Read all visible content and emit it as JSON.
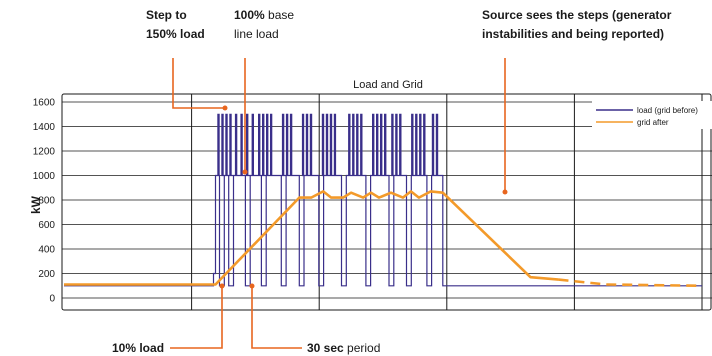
{
  "chart_data": {
    "type": "line",
    "title": "Load and Grid",
    "xlabel": "",
    "ylabel": "kW",
    "ylim": [
      0,
      1600
    ],
    "yticks": [
      0,
      200,
      400,
      600,
      800,
      1000,
      1200,
      1400,
      1600
    ],
    "xlim": [
      0,
      160
    ],
    "x_vertical_gridlines_at": [
      0,
      32,
      64,
      96,
      128,
      160
    ],
    "grid": true,
    "legend_position": "top-right",
    "colors": {
      "load": "#3a2f8a",
      "grid": "#f39a2a",
      "callout": "#e8661f"
    },
    "series": [
      {
        "name": "load (grid before)",
        "style": "solid",
        "baseline_kW": 100,
        "base_kW": 1000,
        "peak_kW": 1500,
        "step_up_at": 38,
        "return_to_baseline_at": 95,
        "pulse_width": 0.3,
        "peak_pulse_x": [
          38.6,
          39.6,
          40.6,
          41.6,
          43.0,
          44.4,
          45.8,
          47.2,
          48.8,
          49.8,
          50.8,
          51.8,
          54.8,
          55.8,
          56.8,
          59.8,
          60.8,
          61.8,
          64.8,
          65.8,
          66.8,
          67.8,
          71.4,
          72.4,
          73.4,
          74.4,
          77.4,
          78.4,
          79.4,
          80.4,
          82.2,
          83.2,
          84.2,
          87.2,
          88.2,
          89.2,
          90.2,
          92.4,
          93.4
        ],
        "dip_x": [
          39.0,
          41.3,
          45.5,
          49.5,
          54.5,
          59.0,
          63.9,
          69.6,
          75.7,
          81.5,
          85.9,
          91.0
        ],
        "dip_width": 1.2
      },
      {
        "name": "grid after",
        "style": "solid, dashed tail",
        "points": [
          [
            0,
            110
          ],
          [
            38,
            110
          ],
          [
            59,
            820
          ],
          [
            62,
            820
          ],
          [
            65,
            870
          ],
          [
            67,
            820
          ],
          [
            70,
            820
          ],
          [
            72,
            860
          ],
          [
            75,
            820
          ],
          [
            77,
            860
          ],
          [
            79,
            820
          ],
          [
            82,
            860
          ],
          [
            85,
            820
          ],
          [
            87,
            870
          ],
          [
            89,
            820
          ],
          [
            92,
            870
          ],
          [
            95,
            860
          ],
          [
            117,
            170
          ],
          [
            124,
            150
          ],
          [
            136,
            110
          ],
          [
            160,
            100
          ]
        ],
        "dashed_from_x": 124
      }
    ],
    "annotations": [
      {
        "parts": [
          {
            "text": "Step to",
            "bold": true
          }
        ],
        "line2": [
          {
            "text": "150% load",
            "bold": true
          }
        ]
      },
      {
        "parts": [
          {
            "text": "100%",
            "bold": true
          },
          {
            "text": " base",
            "bold": false
          }
        ],
        "line2": [
          {
            "text": "line load",
            "bold": false
          }
        ]
      },
      {
        "parts": [
          {
            "text": "Source sees the steps (generator",
            "bold": true
          }
        ],
        "line2": [
          {
            "text": "instabilities and being reported)",
            "bold": true
          }
        ]
      },
      {
        "parts": [
          {
            "text": "10% load",
            "bold": true
          }
        ]
      },
      {
        "parts": [
          {
            "text": "30 sec",
            "bold": true
          },
          {
            "text": " period",
            "bold": false
          }
        ]
      }
    ]
  }
}
